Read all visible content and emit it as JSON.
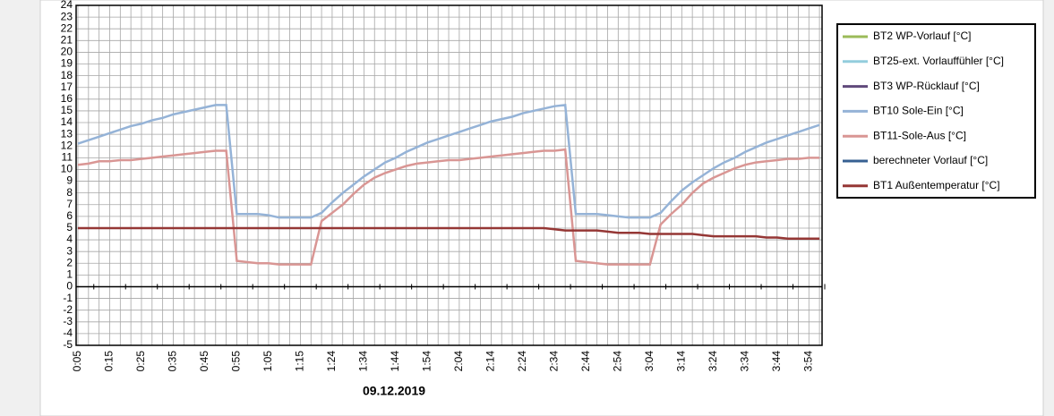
{
  "chart_data": {
    "type": "line",
    "xlabel": "09.12.2019",
    "categories": [
      "0:05",
      null,
      null,
      "0:15",
      null,
      null,
      "0:25",
      null,
      null,
      "0:35",
      null,
      null,
      "0:45",
      null,
      null,
      "0:55",
      null,
      null,
      "1:05",
      null,
      null,
      "1:15",
      null,
      null,
      "1:24",
      null,
      null,
      "1:34",
      null,
      null,
      "1:44",
      null,
      null,
      "1:54",
      null,
      null,
      "2:04",
      null,
      null,
      "2:14",
      null,
      null,
      "2:24",
      null,
      null,
      "2:34",
      null,
      null,
      "2:44",
      null,
      null,
      "2:54",
      null,
      null,
      "3:04",
      null,
      null,
      "3:14",
      null,
      null,
      "3:24",
      null,
      null,
      "3:34",
      null,
      null,
      "3:44",
      null,
      null,
      "3:54",
      null
    ],
    "ylim": [
      -5,
      24
    ],
    "yticks": [
      -5,
      -4,
      -3,
      -2,
      -1,
      0,
      1,
      2,
      3,
      4,
      5,
      6,
      7,
      8,
      9,
      10,
      11,
      12,
      13,
      14,
      15,
      16,
      17,
      18,
      19,
      20,
      21,
      22,
      23,
      24
    ],
    "grid": true,
    "legend": "right",
    "series": [
      {
        "name": "BT2 WP-Vorlauf [°C]",
        "color": "#9bbb59",
        "values": [
          null,
          null,
          null,
          null,
          null,
          null,
          null,
          null,
          null,
          null,
          null,
          null,
          null,
          null,
          null,
          null,
          null,
          null,
          null,
          null,
          null,
          null,
          null,
          null,
          null,
          null,
          null,
          null,
          null,
          null,
          null,
          null,
          null,
          null,
          null,
          null,
          null,
          null,
          null,
          null,
          null,
          null,
          null,
          null,
          null,
          null,
          null,
          null,
          null,
          null,
          null,
          null,
          null,
          null,
          null,
          null,
          null,
          null,
          null,
          null,
          null,
          null,
          null,
          null,
          null,
          null,
          null,
          null,
          null,
          null,
          null
        ]
      },
      {
        "name": "BT25-ext. Vorlauffühler [°C]",
        "color": "#93cddd",
        "values": [
          null,
          null,
          null,
          null,
          null,
          null,
          null,
          null,
          null,
          null,
          null,
          null,
          null,
          null,
          null,
          null,
          null,
          null,
          null,
          null,
          null,
          null,
          null,
          null,
          null,
          null,
          null,
          null,
          null,
          null,
          null,
          null,
          null,
          null,
          null,
          null,
          null,
          null,
          null,
          null,
          null,
          null,
          null,
          null,
          null,
          null,
          null,
          null,
          null,
          null,
          null,
          null,
          null,
          null,
          null,
          null,
          null,
          null,
          null,
          null,
          null,
          null,
          null,
          null,
          null,
          null,
          null,
          null,
          null,
          null,
          null
        ]
      },
      {
        "name": "BT3 WP-Rücklauf [°C]",
        "color": "#604a7b",
        "values": [
          null,
          null,
          null,
          null,
          null,
          null,
          null,
          null,
          null,
          null,
          null,
          null,
          null,
          null,
          null,
          null,
          null,
          null,
          null,
          null,
          null,
          null,
          null,
          null,
          null,
          null,
          null,
          null,
          null,
          null,
          null,
          null,
          null,
          null,
          null,
          null,
          null,
          null,
          null,
          null,
          null,
          null,
          null,
          null,
          null,
          null,
          null,
          null,
          null,
          null,
          null,
          null,
          null,
          null,
          null,
          null,
          null,
          null,
          null,
          null,
          null,
          null,
          null,
          null,
          null,
          null,
          null,
          null,
          null,
          null,
          null
        ]
      },
      {
        "name": "BT10 Sole-Ein [°C]",
        "color": "#95b3d7",
        "values": [
          12.2,
          12.5,
          12.8,
          13.1,
          13.4,
          13.7,
          13.9,
          14.2,
          14.4,
          14.7,
          14.9,
          15.1,
          15.3,
          15.5,
          15.5,
          6.2,
          6.2,
          6.2,
          6.1,
          5.9,
          5.9,
          5.9,
          5.9,
          6.3,
          7.2,
          8.0,
          8.7,
          9.4,
          10.0,
          10.6,
          11.0,
          11.5,
          11.9,
          12.3,
          12.6,
          12.9,
          13.2,
          13.5,
          13.8,
          14.1,
          14.3,
          14.5,
          14.8,
          15.0,
          15.2,
          15.4,
          15.5,
          6.2,
          6.2,
          6.2,
          6.1,
          6.0,
          5.9,
          5.9,
          5.9,
          6.3,
          7.3,
          8.2,
          8.9,
          9.5,
          10.1,
          10.6,
          11.0,
          11.5,
          11.9,
          12.3,
          12.6,
          12.9,
          13.2,
          13.5,
          13.8
        ]
      },
      {
        "name": "BT11-Sole-Aus [°C]",
        "color": "#d99694",
        "values": [
          10.4,
          10.5,
          10.7,
          10.7,
          10.8,
          10.8,
          10.9,
          11.0,
          11.1,
          11.2,
          11.3,
          11.4,
          11.5,
          11.6,
          11.6,
          2.2,
          2.1,
          2.0,
          2.0,
          1.9,
          1.9,
          1.9,
          1.9,
          5.6,
          6.3,
          7.0,
          7.9,
          8.7,
          9.3,
          9.7,
          10.0,
          10.3,
          10.5,
          10.6,
          10.7,
          10.8,
          10.8,
          10.9,
          11.0,
          11.1,
          11.2,
          11.3,
          11.4,
          11.5,
          11.6,
          11.6,
          11.7,
          2.2,
          2.1,
          2.0,
          1.9,
          1.9,
          1.9,
          1.9,
          1.9,
          5.3,
          6.2,
          7.0,
          8.0,
          8.8,
          9.3,
          9.7,
          10.1,
          10.4,
          10.6,
          10.7,
          10.8,
          10.9,
          10.9,
          11.0,
          11.0
        ]
      },
      {
        "name": "berechneter Vorlauf [°C]",
        "color": "#376092",
        "values": [
          null,
          null,
          null,
          null,
          null,
          null,
          null,
          null,
          null,
          null,
          null,
          null,
          null,
          null,
          null,
          null,
          null,
          null,
          null,
          null,
          null,
          null,
          null,
          null,
          null,
          null,
          null,
          null,
          null,
          null,
          null,
          null,
          null,
          null,
          null,
          null,
          null,
          null,
          null,
          null,
          null,
          null,
          null,
          null,
          null,
          null,
          null,
          null,
          null,
          null,
          null,
          null,
          null,
          null,
          null,
          null,
          null,
          null,
          null,
          null,
          null,
          null,
          null,
          null,
          null,
          null,
          null,
          null,
          null,
          null,
          null
        ]
      },
      {
        "name": "BT1 Außentemperatur [°C]",
        "color": "#953735",
        "values": [
          5,
          5,
          5,
          5,
          5,
          5,
          5,
          5,
          5,
          5,
          5,
          5,
          5,
          5,
          5,
          5,
          5,
          5,
          5,
          5,
          5,
          5,
          5,
          5,
          5,
          5,
          5,
          5,
          5,
          5,
          5,
          5,
          5,
          5,
          5,
          5,
          5,
          5,
          5,
          5,
          5,
          5,
          5,
          5,
          5,
          4.9,
          4.8,
          4.8,
          4.8,
          4.8,
          4.7,
          4.6,
          4.6,
          4.6,
          4.5,
          4.5,
          4.5,
          4.5,
          4.5,
          4.4,
          4.3,
          4.3,
          4.3,
          4.3,
          4.3,
          4.2,
          4.2,
          4.1,
          4.1,
          4.1,
          4.1
        ]
      }
    ]
  }
}
